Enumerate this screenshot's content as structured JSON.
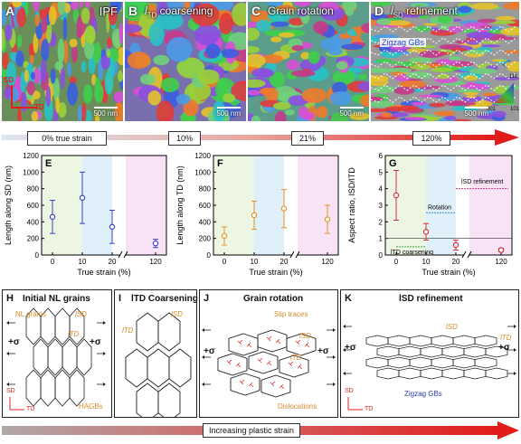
{
  "panels": {
    "A": {
      "label": "A",
      "title": "IPF",
      "scale": "500 nm",
      "sd": "SD",
      "td": "TD"
    },
    "B": {
      "label": "B",
      "title_main": "l",
      "title_sub": "TD",
      "title_rest": " coarsening",
      "scale": "500 nm"
    },
    "C": {
      "label": "C",
      "title": "Grain rotation",
      "scale": "500 nm"
    },
    "D": {
      "label": "D",
      "title_main": "l",
      "title_sub": "SD",
      "title_rest": " refinement",
      "scale": "500 nm",
      "zigzag": "Zigzag GBs",
      "ipf_111": "111",
      "ipf_001": "001",
      "ipf_101": "101"
    }
  },
  "strain_bar": {
    "labels": [
      "0% true strain",
      "10%",
      "21%",
      "120%"
    ]
  },
  "charts": {
    "E": {
      "label": "E",
      "ylabel": "Length along SD (nm)",
      "xlabel": "True strain (%)",
      "yticks": [
        "0",
        "200",
        "400",
        "600",
        "800",
        "1000",
        "1200"
      ],
      "xticks": [
        "0",
        "10",
        "20",
        "120"
      ],
      "color": "#3a44c8"
    },
    "F": {
      "label": "F",
      "ylabel": "Length along TD (nm)",
      "xlabel": "True strain (%)",
      "yticks": [
        "0",
        "200",
        "400",
        "600",
        "800",
        "1000",
        "1200"
      ],
      "xticks": [
        "0",
        "10",
        "20",
        "120"
      ],
      "color": "#e0952b"
    },
    "G": {
      "label": "G",
      "ylabel": "Aspect ratio, lSD/lTD",
      "xlabel": "True strain (%)",
      "yticks": [
        "0",
        "1",
        "2",
        "3",
        "4",
        "5",
        "6"
      ],
      "xticks": [
        "0",
        "10",
        "20",
        "120"
      ],
      "color": "#d6303a",
      "ann_refine": "lSD refinement",
      "ann_rotation": "Rotation",
      "ann_coarse": "lTD coarsening"
    }
  },
  "chart_data": [
    {
      "type": "scatter",
      "title": "",
      "xlabel": "True strain (%)",
      "ylabel": "Length along SD (nm)",
      "x": [
        0,
        10,
        21,
        120
      ],
      "y": [
        460,
        690,
        340,
        140
      ],
      "yerr": [
        200,
        310,
        200,
        50
      ],
      "ylim": [
        0,
        1200
      ],
      "x_break": true
    },
    {
      "type": "scatter",
      "title": "",
      "xlabel": "True strain (%)",
      "ylabel": "Length along TD (nm)",
      "x": [
        0,
        10,
        21,
        120
      ],
      "y": [
        230,
        480,
        560,
        430
      ],
      "yerr": [
        110,
        170,
        230,
        170
      ],
      "ylim": [
        0,
        1200
      ],
      "x_break": true
    },
    {
      "type": "scatter",
      "title": "",
      "xlabel": "True strain (%)",
      "ylabel": "Aspect ratio, lSD/lTD",
      "x": [
        0,
        10,
        21,
        120
      ],
      "y": [
        3.6,
        1.4,
        0.6,
        0.3
      ],
      "yerr": [
        1.5,
        0.5,
        0.3,
        0.1
      ],
      "ylim": [
        0,
        6
      ],
      "x_break": true
    }
  ],
  "schematics": {
    "H": {
      "label": "H",
      "title": "Initial NL grains",
      "nl": "NL grains",
      "lsd": "lSD",
      "ltd": "lTD",
      "hagb": "HAGBs",
      "sigma": "+σ",
      "sd": "SD",
      "td": "TD"
    },
    "I": {
      "label": "I",
      "title": "lTD Coarsening",
      "lsd": "lSD",
      "ltd": "lTD"
    },
    "J": {
      "label": "J",
      "title": "Grain rotation",
      "slip": "Slip traces",
      "lsd": "lSD",
      "ltd": "lTD",
      "disl": "Dislocations",
      "sigma": "+σ"
    },
    "K": {
      "label": "K",
      "title": "lSD refinement",
      "lsd": "lSD",
      "ltd": "lTD",
      "zigzag": "Zigzag GBs",
      "sigma": "+σ",
      "sd": "SD",
      "td": "TD"
    }
  },
  "bottom_bar": {
    "text": "Increasing plastic strain"
  }
}
